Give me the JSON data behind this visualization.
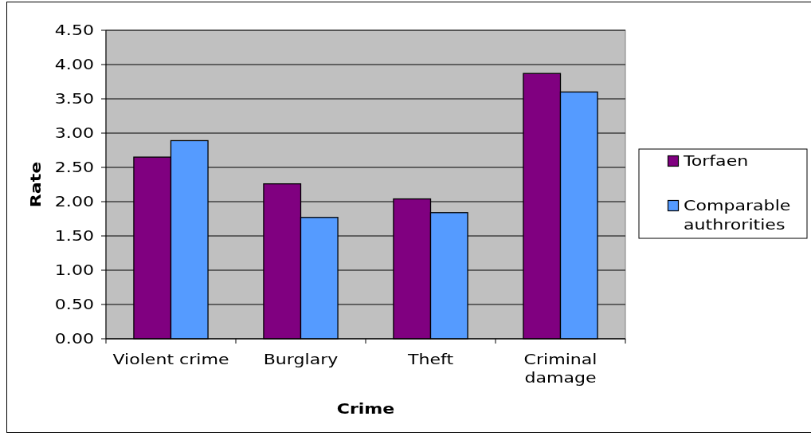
{
  "chart_data": {
    "type": "bar",
    "xlabel": "Crime",
    "ylabel": "Rate",
    "categories": [
      "Violent crime",
      "Burglary",
      "Theft",
      "Criminal damage"
    ],
    "series": [
      {
        "name": "Torfaen",
        "color": "#800080",
        "values": [
          2.65,
          2.26,
          2.04,
          3.87
        ]
      },
      {
        "name": "Comparable authrorities",
        "color": "#559bff",
        "values": [
          2.89,
          1.77,
          1.84,
          3.6
        ]
      }
    ],
    "ylim": [
      0,
      4.5
    ],
    "yticks": [
      {
        "value": 0,
        "label": "0.00"
      },
      {
        "value": 0.5,
        "label": "0.50"
      },
      {
        "value": 1,
        "label": "1.00"
      },
      {
        "value": 1.5,
        "label": "1.50"
      },
      {
        "value": 2,
        "label": "2.00"
      },
      {
        "value": 2.5,
        "label": "2.50"
      },
      {
        "value": 3,
        "label": "3.00"
      },
      {
        "value": 3.5,
        "label": "3.50"
      },
      {
        "value": 4,
        "label": "4.00"
      },
      {
        "value": 4.5,
        "label": "4.50"
      }
    ],
    "grid": "y",
    "legend": "right"
  }
}
